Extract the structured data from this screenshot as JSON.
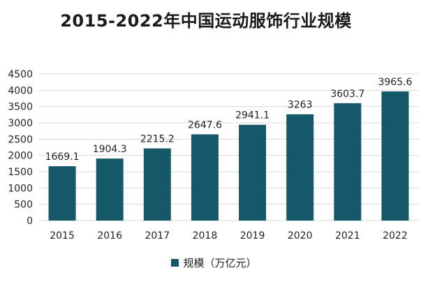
{
  "chart_data": {
    "type": "bar",
    "title": "2015-2022年中国运动服饰行业规模",
    "xlabel": "",
    "ylabel": "",
    "categories": [
      "2015",
      "2016",
      "2017",
      "2018",
      "2019",
      "2020",
      "2021",
      "2022"
    ],
    "series": [
      {
        "name": "规模（万亿元）",
        "values": [
          1669.1,
          1904.3,
          2215.2,
          2647.6,
          2941.1,
          3263,
          3603.7,
          3965.6
        ],
        "labels": [
          "1669.1",
          "1904.3",
          "2215.2",
          "2647.6",
          "2941.1",
          "3263",
          "3603.7",
          "3965.6"
        ],
        "color": "#14586A"
      }
    ],
    "ylim": [
      0,
      4500
    ],
    "yticks": [
      "0",
      "500",
      "1000",
      "1500",
      "2000",
      "2500",
      "3000",
      "3500",
      "4000",
      "4500"
    ],
    "grid": true,
    "legend_position": "bottom"
  },
  "colors": {
    "bar": "#14586A",
    "grid": "#d9d9d9",
    "axis_text": "#222222"
  }
}
